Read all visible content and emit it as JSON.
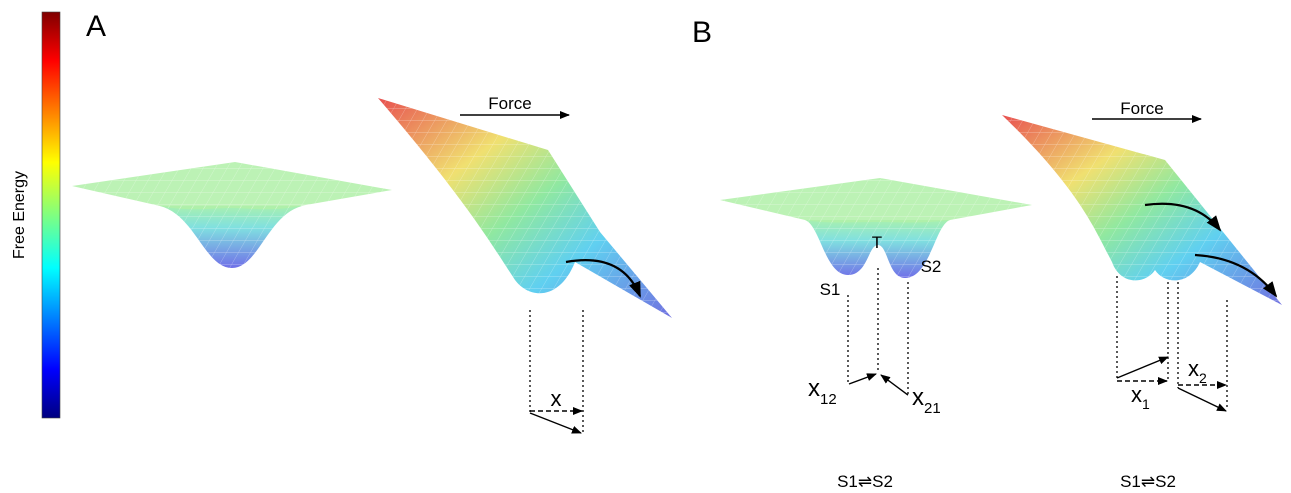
{
  "colorbar": {
    "label": "Free Energy"
  },
  "panel_a": {
    "label": "A",
    "force": "Force",
    "distance": "x"
  },
  "panel_b": {
    "label": "B",
    "force": "Force",
    "transition": "T",
    "state_1": "S1",
    "state_2": "S2",
    "x12": {
      "base": "x",
      "sub": "12"
    },
    "x21": {
      "base": "x",
      "sub": "21"
    },
    "x1": {
      "base": "x",
      "sub": "1"
    },
    "x2": {
      "base": "x",
      "sub": "2"
    },
    "reactions": [
      "S1⇌S2",
      "S1⇌S2"
    ]
  }
}
